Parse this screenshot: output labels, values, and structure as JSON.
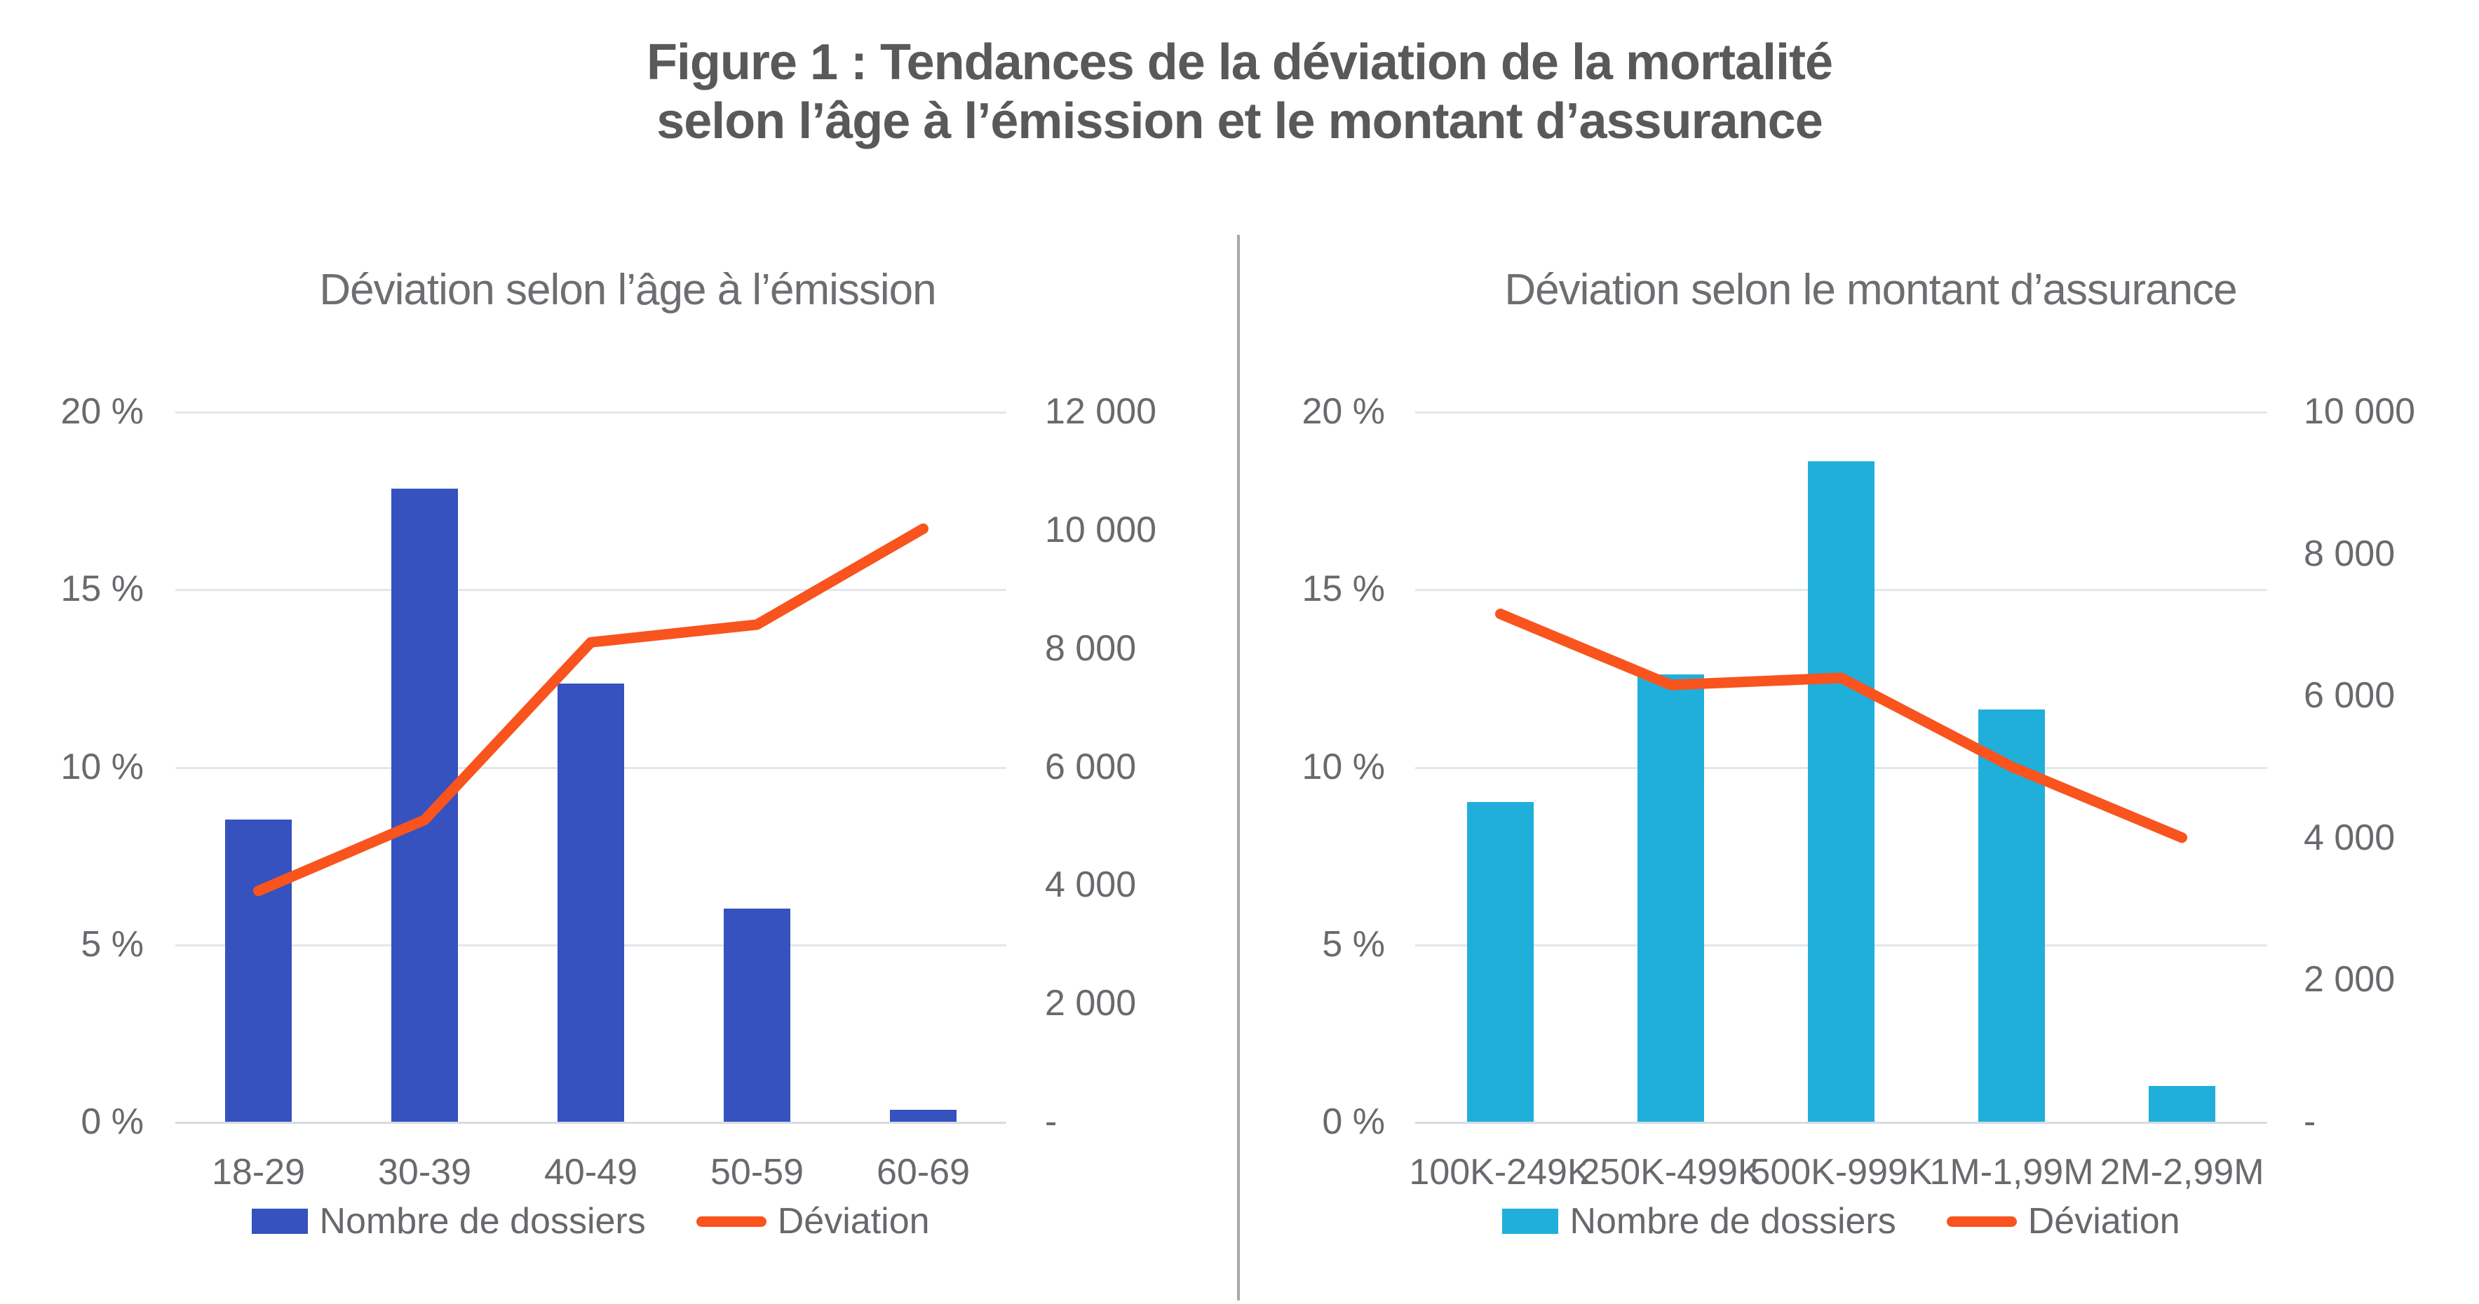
{
  "page": {
    "title_line1": "Figure 1 : Tendances de la déviation de la mortalité",
    "title_line2": "selon l’âge à l’émission et le montant d’assurance"
  },
  "colors": {
    "title_text": "#58595B",
    "subtitle_text": "#6D6E71",
    "tick_text": "#696A6E",
    "gridline": "#E2E7EC",
    "axis_line": "#D6DBE0",
    "divider": "#A8A8A8",
    "bar_blue": "#3552BE",
    "bar_cyan": "#20AFDB",
    "line_orange": "#F9531E"
  },
  "chart_data": [
    {
      "type": "bar",
      "subtype": "bar+line dual axis",
      "title": "Déviation selon l’âge à l’émission",
      "categories": [
        "18-29",
        "30-39",
        "40-49",
        "50-59",
        "60-69"
      ],
      "series": [
        {
          "name": "Nombre de dossiers",
          "kind": "bar",
          "axis": "right",
          "color": "#3552BE",
          "values": [
            5100,
            10700,
            7400,
            3600,
            200
          ]
        },
        {
          "name": "Déviation",
          "kind": "line",
          "axis": "left",
          "color": "#F9531E",
          "values": [
            6.5,
            8.5,
            13.5,
            14.0,
            16.7
          ],
          "unit": "%"
        }
      ],
      "left_axis": {
        "min": 0,
        "max": 20,
        "unit": "%",
        "ticks": [
          "20 %",
          "15 %",
          "10 %",
          "5 %",
          "0 %"
        ]
      },
      "right_axis": {
        "min": 0,
        "max": 12000,
        "ticks": [
          "12 000",
          "10 000",
          "8 000",
          "6 000",
          "4 000",
          "2 000",
          "-"
        ]
      },
      "legend": [
        "Nombre de dossiers",
        "Déviation"
      ],
      "grid": true,
      "legend_position": "bottom"
    },
    {
      "type": "bar",
      "subtype": "bar+line dual axis",
      "title": "Déviation selon le montant d’assurance",
      "categories": [
        "100K-249K",
        "250K-499K",
        "500K-999K",
        "1M-1,99M",
        "2M-2,99M"
      ],
      "series": [
        {
          "name": "Nombre de dossiers",
          "kind": "bar",
          "axis": "right",
          "color": "#20AFDB",
          "values": [
            4500,
            6300,
            9300,
            5800,
            500
          ]
        },
        {
          "name": "Déviation",
          "kind": "line",
          "axis": "left",
          "color": "#F9531E",
          "values": [
            14.3,
            12.3,
            12.5,
            10.0,
            8.0
          ],
          "unit": "%"
        }
      ],
      "left_axis": {
        "min": 0,
        "max": 20,
        "unit": "%",
        "ticks": [
          "20 %",
          "15 %",
          "10 %",
          "5 %",
          "0 %"
        ]
      },
      "right_axis": {
        "min": 0,
        "max": 10000,
        "ticks": [
          "10 000",
          "8 000",
          "6 000",
          "4 000",
          "2 000",
          "-"
        ]
      },
      "legend": [
        "Nombre de dossiers",
        "Déviation"
      ],
      "grid": true,
      "legend_position": "bottom"
    }
  ]
}
